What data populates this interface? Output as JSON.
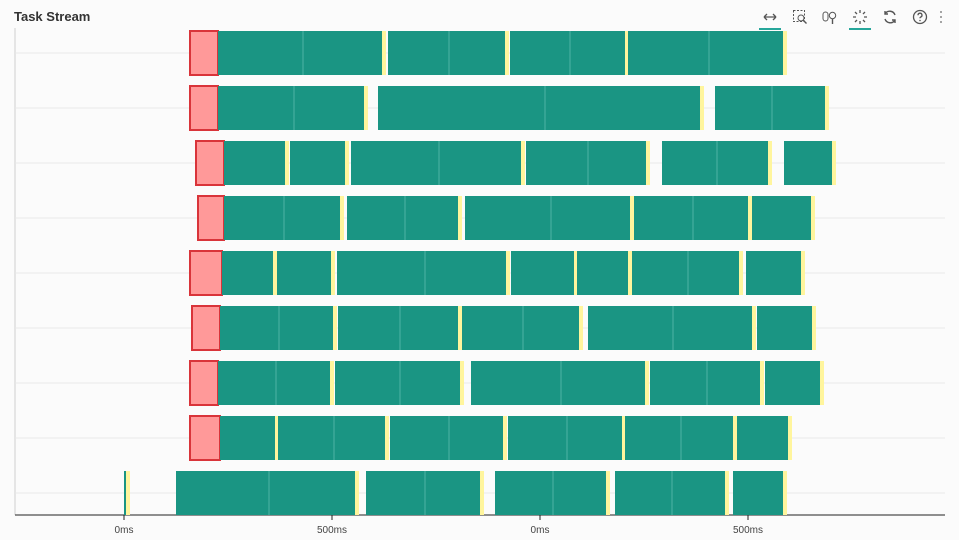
{
  "title": "Task Stream",
  "toolbar": {
    "tools": [
      {
        "name": "pan-icon",
        "active": true
      },
      {
        "name": "box-zoom-icon",
        "active": false
      },
      {
        "name": "wheel-zoom-icon",
        "active": false
      },
      {
        "name": "tap-icon",
        "active": true
      },
      {
        "name": "reset-icon",
        "active": false
      },
      {
        "name": "help-icon",
        "active": false
      }
    ]
  },
  "colors": {
    "compute": "#1a9583",
    "transfer": "#ff9999",
    "transfer_border": "#d9343a",
    "gap": "#fff59d",
    "axis": "#222222",
    "grid": "#e8e8e8"
  },
  "axis": {
    "ticks": [
      {
        "label": "0ms"
      },
      {
        "label": "500ms"
      },
      {
        "label": "0ms"
      },
      {
        "label": "500ms"
      }
    ]
  },
  "chart_data": {
    "type": "gantt",
    "lanes": [
      {
        "segments": [
          [
            190,
            218,
            "transfer"
          ],
          [
            218,
            382,
            "compute"
          ],
          [
            388,
            505,
            "compute"
          ],
          [
            510,
            625,
            "compute"
          ],
          [
            628,
            783,
            "compute"
          ]
        ]
      },
      {
        "segments": [
          [
            190,
            218,
            "transfer"
          ],
          [
            218,
            364,
            "compute"
          ],
          [
            378,
            700,
            "compute"
          ],
          [
            715,
            825,
            "compute"
          ]
        ]
      },
      {
        "segments": [
          [
            196,
            224,
            "transfer"
          ],
          [
            224,
            285,
            "compute"
          ],
          [
            290,
            345,
            "compute"
          ],
          [
            351,
            521,
            "compute"
          ],
          [
            526,
            646,
            "compute"
          ],
          [
            662,
            768,
            "compute"
          ],
          [
            784,
            832,
            "compute"
          ]
        ]
      },
      {
        "segments": [
          [
            198,
            224,
            "transfer"
          ],
          [
            224,
            340,
            "compute"
          ],
          [
            347,
            458,
            "compute"
          ],
          [
            465,
            630,
            "compute"
          ],
          [
            634,
            748,
            "compute"
          ],
          [
            752,
            811,
            "compute"
          ]
        ]
      },
      {
        "segments": [
          [
            190,
            222,
            "transfer"
          ],
          [
            222,
            273,
            "compute"
          ],
          [
            277,
            331,
            "compute"
          ],
          [
            337,
            506,
            "compute"
          ],
          [
            511,
            574,
            "compute"
          ],
          [
            577,
            628,
            "compute"
          ],
          [
            632,
            739,
            "compute"
          ],
          [
            746,
            801,
            "compute"
          ]
        ]
      },
      {
        "segments": [
          [
            192,
            220,
            "transfer"
          ],
          [
            220,
            333,
            "compute"
          ],
          [
            338,
            458,
            "compute"
          ],
          [
            462,
            579,
            "compute"
          ],
          [
            588,
            752,
            "compute"
          ],
          [
            757,
            812,
            "compute"
          ]
        ]
      },
      {
        "segments": [
          [
            190,
            218,
            "transfer"
          ],
          [
            218,
            330,
            "compute"
          ],
          [
            335,
            460,
            "compute"
          ],
          [
            471,
            645,
            "compute"
          ],
          [
            650,
            760,
            "compute"
          ],
          [
            765,
            820,
            "compute"
          ]
        ]
      },
      {
        "segments": [
          [
            190,
            220,
            "transfer"
          ],
          [
            220,
            275,
            "compute"
          ],
          [
            278,
            385,
            "compute"
          ],
          [
            390,
            503,
            "compute"
          ],
          [
            508,
            622,
            "compute"
          ],
          [
            625,
            733,
            "compute"
          ],
          [
            737,
            788,
            "compute"
          ]
        ]
      },
      {
        "segments": [
          [
            124,
            126,
            "compute"
          ],
          [
            176,
            355,
            "compute"
          ],
          [
            366,
            480,
            "compute"
          ],
          [
            495,
            606,
            "compute"
          ],
          [
            615,
            725,
            "compute"
          ],
          [
            733,
            783,
            "compute"
          ]
        ]
      }
    ]
  }
}
